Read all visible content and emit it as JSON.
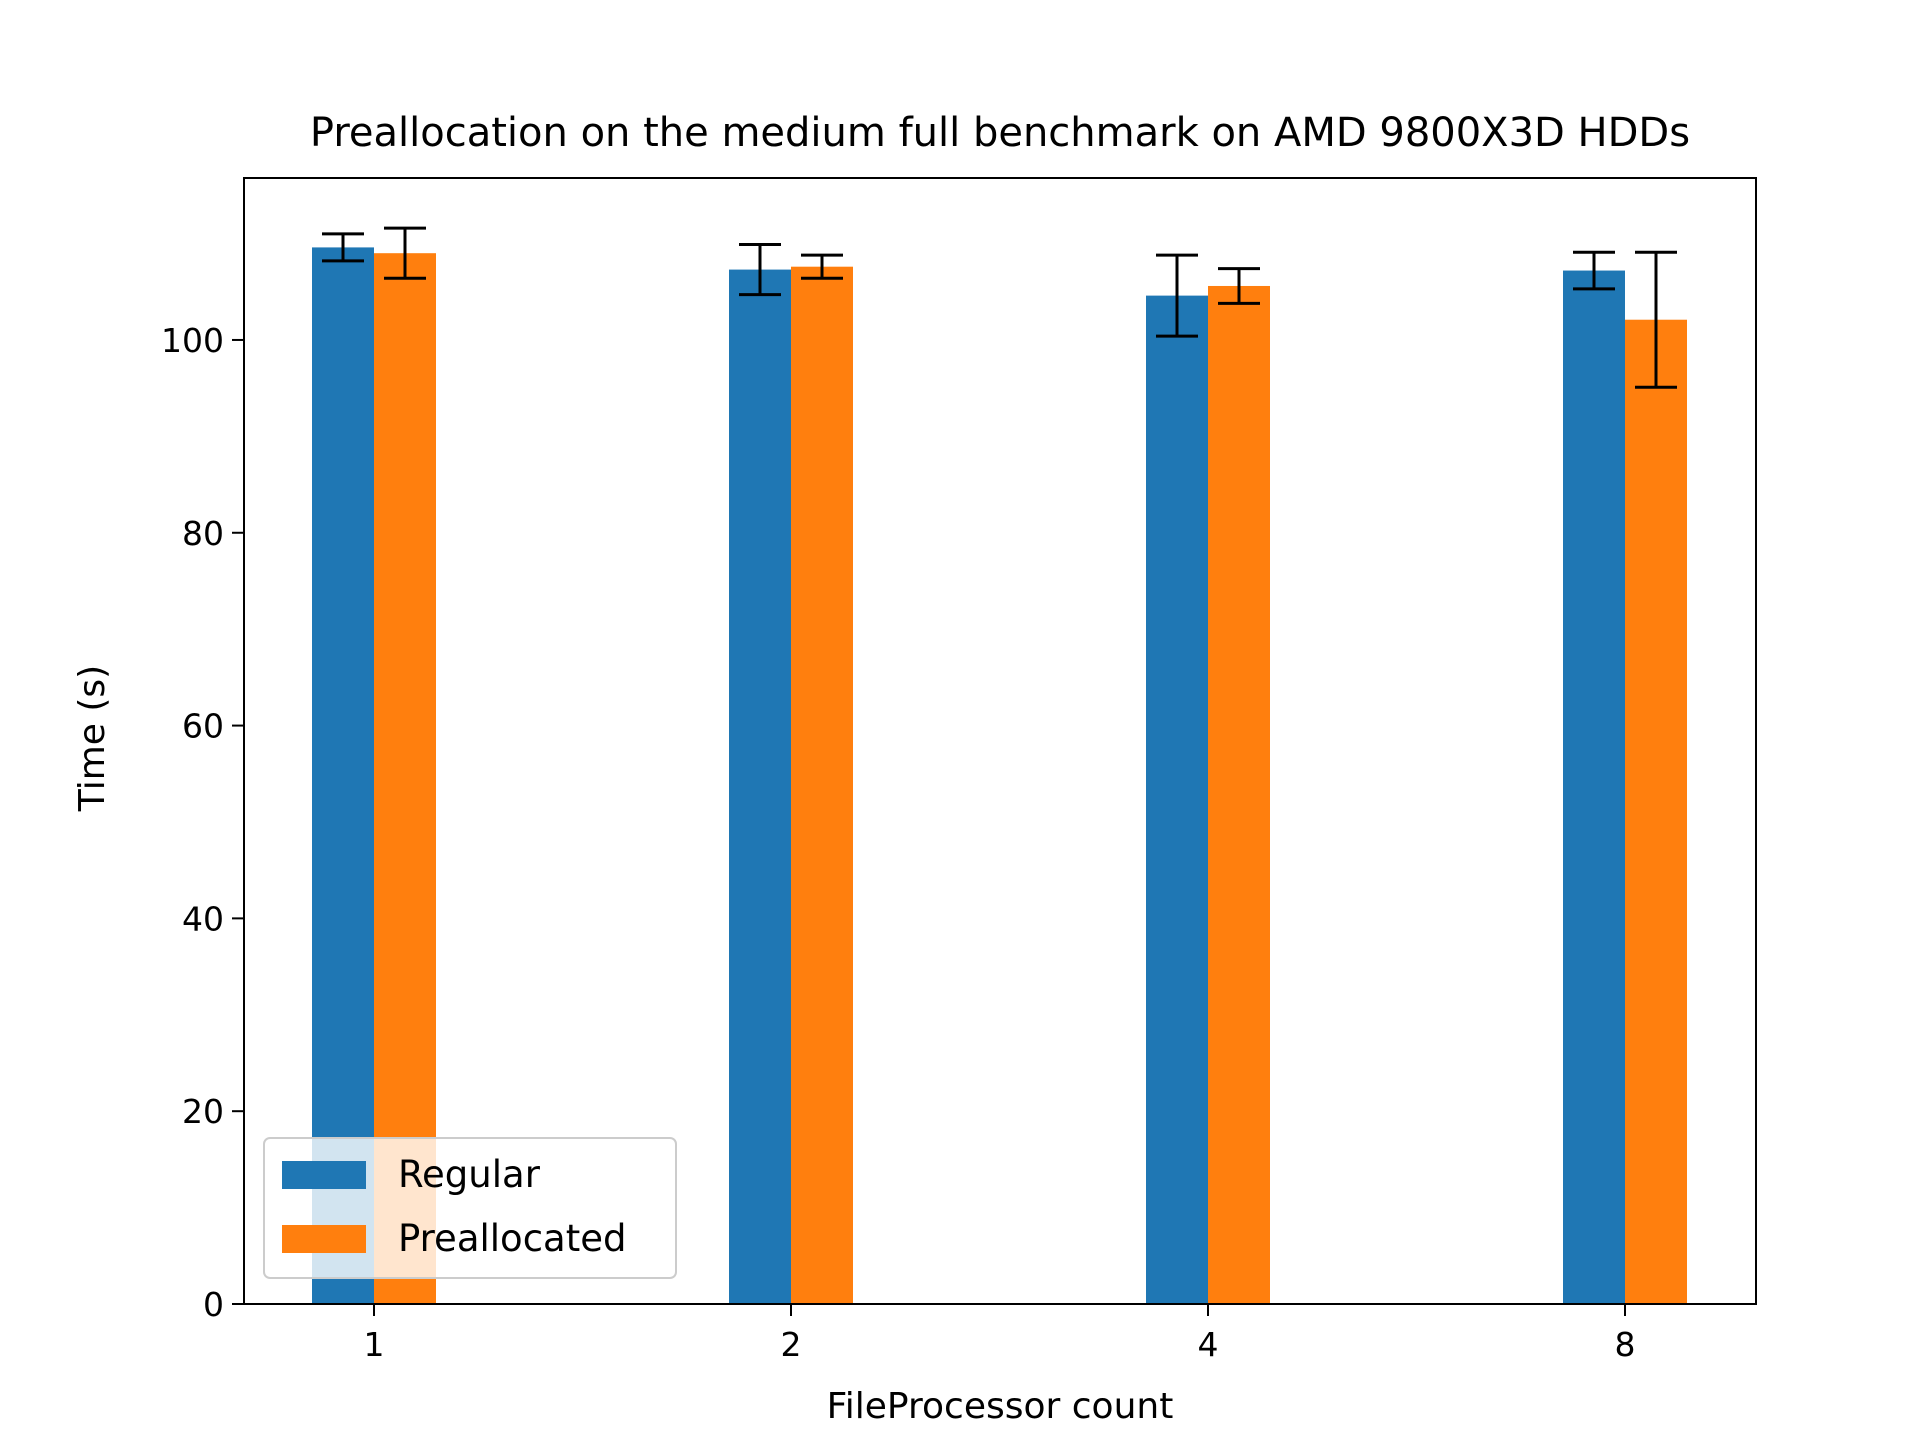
{
  "chart_data": {
    "type": "bar",
    "title": "Preallocation on the medium full benchmark on AMD 9800X3D HDDs",
    "xlabel": "FileProcessor count",
    "ylabel": "Time (s)",
    "categories": [
      "1",
      "2",
      "4",
      "8"
    ],
    "series": [
      {
        "name": "Regular",
        "color": "#1f77b4",
        "values": [
          109.6,
          107.3,
          104.6,
          107.2
        ],
        "errors": [
          1.4,
          2.6,
          4.2,
          1.9
        ]
      },
      {
        "name": "Preallocated",
        "color": "#ff7f0e",
        "values": [
          109.0,
          107.6,
          105.6,
          102.1
        ],
        "errors": [
          2.6,
          1.2,
          1.8,
          7.0
        ]
      }
    ],
    "ylim": [
      0,
      116.8
    ],
    "yticks": [
      0,
      20,
      40,
      60,
      80,
      100
    ],
    "legend": "lower-left",
    "grid": false
  }
}
